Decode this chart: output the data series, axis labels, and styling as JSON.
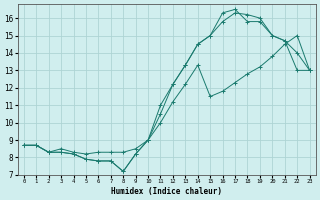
{
  "xlabel": "Humidex (Indice chaleur)",
  "ylabel": "",
  "background_color": "#d0eeee",
  "grid_color": "#aed4d4",
  "line_color": "#1a7a6e",
  "xlim": [
    -0.5,
    23.5
  ],
  "ylim": [
    7,
    16.8
  ],
  "yticks": [
    7,
    8,
    9,
    10,
    11,
    12,
    13,
    14,
    15,
    16
  ],
  "xticks": [
    0,
    1,
    2,
    3,
    4,
    5,
    6,
    7,
    8,
    9,
    10,
    11,
    12,
    13,
    14,
    15,
    16,
    17,
    18,
    19,
    20,
    21,
    22,
    23
  ],
  "line1_x": [
    0,
    1,
    2,
    3,
    4,
    5,
    6,
    7,
    8,
    9,
    10,
    11,
    12,
    13,
    14,
    15,
    16,
    17,
    18,
    19,
    20,
    21,
    22,
    23
  ],
  "line1_y": [
    8.7,
    8.7,
    8.3,
    8.3,
    8.2,
    7.9,
    7.8,
    7.8,
    7.2,
    8.2,
    9.0,
    10.5,
    12.2,
    13.3,
    14.5,
    15.0,
    15.8,
    16.3,
    16.2,
    16.0,
    15.0,
    14.7,
    13.0,
    13.0
  ],
  "line2_x": [
    0,
    1,
    2,
    3,
    4,
    5,
    6,
    7,
    8,
    9,
    10,
    11,
    12,
    13,
    14,
    15,
    16,
    17,
    18,
    19,
    20,
    21,
    22,
    23
  ],
  "line2_y": [
    8.7,
    8.7,
    8.3,
    8.3,
    8.2,
    7.9,
    7.8,
    7.8,
    7.2,
    8.2,
    9.0,
    11.0,
    12.2,
    13.3,
    14.5,
    15.0,
    16.3,
    16.5,
    15.8,
    15.8,
    15.0,
    14.7,
    14.0,
    13.0
  ],
  "line3_x": [
    0,
    1,
    2,
    3,
    4,
    5,
    6,
    7,
    8,
    9,
    10,
    11,
    12,
    13,
    14,
    15,
    16,
    17,
    18,
    19,
    20,
    21,
    22,
    23
  ],
  "line3_y": [
    8.7,
    8.7,
    8.3,
    8.5,
    8.3,
    8.2,
    8.3,
    8.3,
    8.3,
    8.5,
    9.0,
    10.0,
    11.2,
    12.2,
    13.3,
    11.5,
    11.8,
    12.3,
    12.8,
    13.2,
    13.8,
    14.5,
    15.0,
    13.0
  ]
}
